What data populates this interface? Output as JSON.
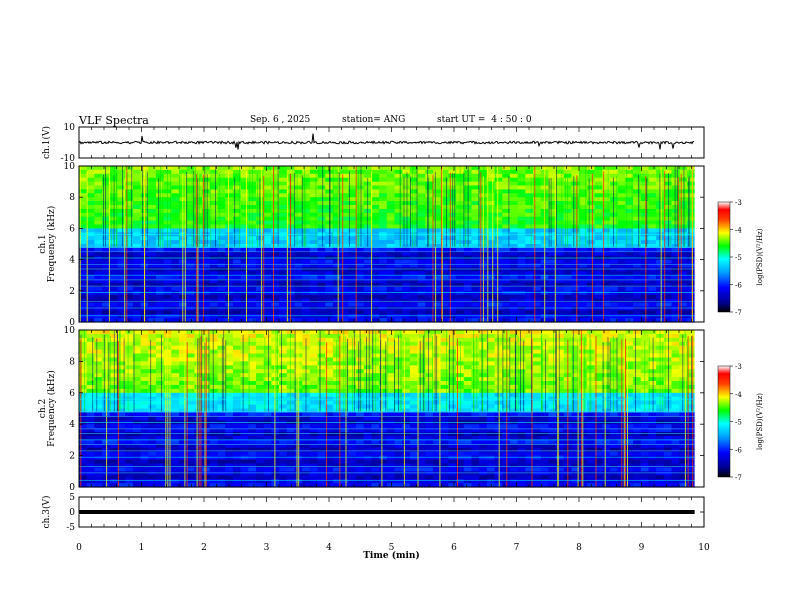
{
  "header": {
    "title": "VLF Spectra",
    "date": "Sep. 6 , 2025",
    "station": "station= ANG",
    "start_label": "start  UT =",
    "start_value": "4 : 50 : 0"
  },
  "chart_data": [
    {
      "id": "ch1-waveform",
      "type": "line",
      "ylabel": "ch.1(V)",
      "ylim": [
        -10,
        10
      ],
      "yticks": [
        "10",
        "-10"
      ],
      "xlim": [
        0,
        10
      ],
      "baseline": 0,
      "color": "#000000"
    },
    {
      "id": "ch1-spectrogram",
      "type": "heatmap",
      "ylabel": "ch.1\nFrequency (kHz)",
      "ylim": [
        0,
        10
      ],
      "yticks": [
        "0",
        "2",
        "4",
        "6",
        "8",
        "10"
      ],
      "xlim": [
        0,
        10
      ],
      "data_end_min": 9.85,
      "colorbar": {
        "label": "log(PSD)(V²/Hz)",
        "range": [
          -7,
          -3
        ],
        "ticks": [
          "-3",
          "-4",
          "-5",
          "-6",
          "-7"
        ]
      }
    },
    {
      "id": "ch2-spectrogram",
      "type": "heatmap",
      "ylabel": "ch.2\nFrequency (kHz)",
      "ylim": [
        0,
        10
      ],
      "yticks": [
        "0",
        "2",
        "4",
        "6",
        "8",
        "10"
      ],
      "xlim": [
        0,
        10
      ],
      "data_end_min": 9.85,
      "colorbar": {
        "label": "log(PSD)(V²/Hz)",
        "range": [
          -7,
          -3
        ],
        "ticks": [
          "-3",
          "-4",
          "-5",
          "-6",
          "-7"
        ]
      }
    },
    {
      "id": "ch3-waveform",
      "type": "line",
      "ylabel": "ch.3(V)",
      "ylim": [
        -5,
        5
      ],
      "yticks": [
        "5",
        "0",
        "-5"
      ],
      "xlim": [
        0,
        10
      ],
      "baseline": 0,
      "color": "#000000"
    }
  ],
  "xaxis": {
    "label": "Time (min)",
    "ticks": [
      "0",
      "1",
      "2",
      "3",
      "4",
      "5",
      "6",
      "7",
      "8",
      "9",
      "10"
    ]
  }
}
